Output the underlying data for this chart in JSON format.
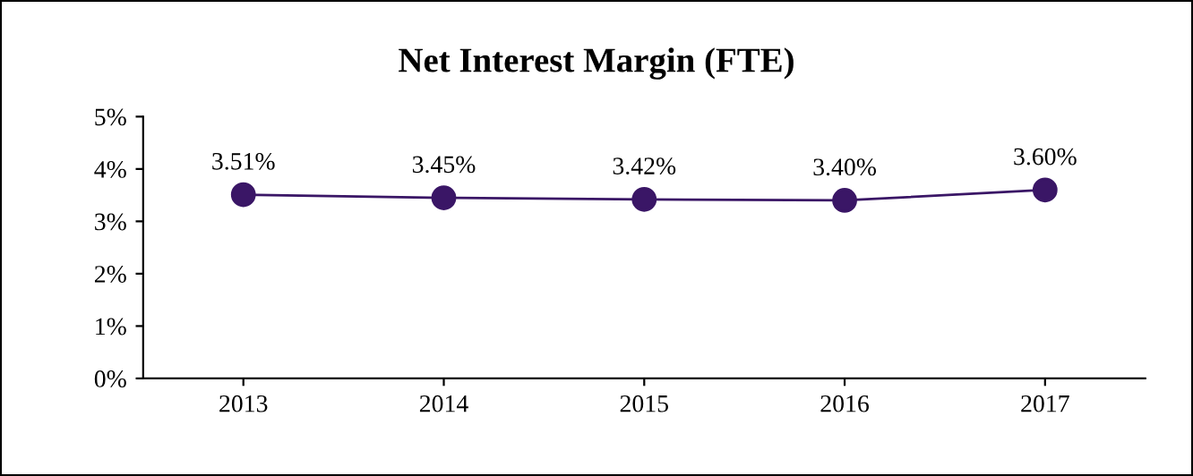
{
  "chart_data": {
    "type": "line",
    "title": "Net Interest Margin (FTE)",
    "categories": [
      "2013",
      "2014",
      "2015",
      "2016",
      "2017"
    ],
    "series": [
      {
        "color": "#3a1666",
        "values": [
          3.51,
          3.45,
          3.42,
          3.4,
          3.6
        ],
        "value_labels": [
          "3.51%",
          "3.45%",
          "3.42%",
          "3.40%",
          "3.60%"
        ]
      }
    ],
    "ylim": [
      0,
      5
    ],
    "yticks": [
      {
        "value": 0,
        "label": "0%"
      },
      {
        "value": 1,
        "label": "1%"
      },
      {
        "value": 2,
        "label": "2%"
      },
      {
        "value": 3,
        "label": "3%"
      },
      {
        "value": 4,
        "label": "4%"
      },
      {
        "value": 5,
        "label": "5%"
      }
    ],
    "marker": "circle",
    "line_style": "solid",
    "grid": false,
    "legend": false
  }
}
